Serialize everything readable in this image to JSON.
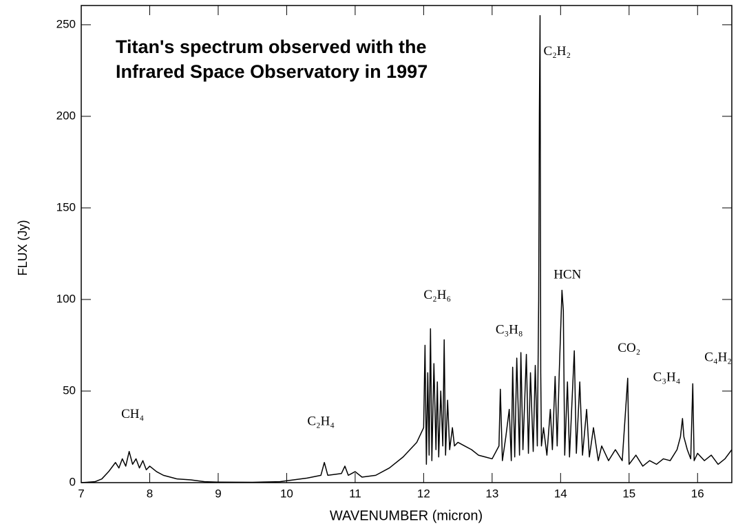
{
  "chart_data": {
    "type": "line",
    "title": [
      "Titan's spectrum observed with the",
      "Infrared Space Observatory in 1997"
    ],
    "x_label": "WAVENUMBER  (micron)",
    "y_label": "FLUX (Jy)",
    "color": "#000000",
    "x": [
      7.0,
      7.2,
      7.3,
      7.4,
      7.5,
      7.55,
      7.6,
      7.65,
      7.7,
      7.75,
      7.8,
      7.85,
      7.9,
      7.95,
      8.0,
      8.1,
      8.2,
      8.3,
      8.4,
      8.6,
      8.8,
      9.0,
      9.5,
      9.9,
      10.1,
      10.3,
      10.5,
      10.55,
      10.6,
      10.8,
      10.85,
      10.9,
      11.0,
      11.1,
      11.3,
      11.5,
      11.7,
      11.9,
      12.0,
      12.02,
      12.04,
      12.06,
      12.08,
      12.1,
      12.12,
      12.15,
      12.18,
      12.2,
      12.22,
      12.25,
      12.28,
      12.3,
      12.32,
      12.35,
      12.38,
      12.42,
      12.45,
      12.5,
      12.6,
      12.7,
      12.8,
      12.9,
      13.0,
      13.1,
      13.12,
      13.15,
      13.2,
      13.25,
      13.28,
      13.3,
      13.33,
      13.36,
      13.4,
      13.42,
      13.45,
      13.5,
      13.53,
      13.56,
      13.6,
      13.63,
      13.66,
      13.68,
      13.69,
      13.7,
      13.71,
      13.72,
      13.75,
      13.8,
      13.85,
      13.88,
      13.92,
      13.95,
      13.98,
      14.02,
      14.04,
      14.06,
      14.1,
      14.13,
      14.2,
      14.23,
      14.28,
      14.32,
      14.38,
      14.42,
      14.48,
      14.55,
      14.6,
      14.7,
      14.8,
      14.9,
      14.98,
      15.0,
      15.1,
      15.2,
      15.3,
      15.4,
      15.5,
      15.6,
      15.7,
      15.75,
      15.78,
      15.8,
      15.85,
      15.9,
      15.93,
      15.95,
      16.0,
      16.1,
      16.2,
      16.3,
      16.4,
      16.5
    ],
    "values": [
      0,
      0.5,
      2,
      6,
      11,
      8,
      13,
      9,
      17,
      10,
      13,
      8,
      12,
      7,
      9,
      6,
      4,
      3,
      2,
      1.5,
      0.5,
      0.3,
      0.2,
      0.5,
      1.5,
      2.5,
      4,
      11,
      4,
      5,
      9,
      4,
      6,
      3,
      4,
      8,
      14,
      22,
      30,
      75,
      10,
      60,
      15,
      84,
      12,
      65,
      18,
      55,
      14,
      50,
      20,
      78,
      15,
      45,
      18,
      30,
      20,
      22,
      20,
      18,
      15,
      14,
      13,
      20,
      51,
      12,
      25,
      40,
      12,
      63,
      14,
      68,
      15,
      71,
      18,
      70,
      16,
      60,
      17,
      64,
      20,
      100,
      202,
      255,
      60,
      20,
      30,
      15,
      40,
      18,
      58,
      20,
      60,
      105,
      94,
      15,
      55,
      14,
      72,
      16,
      55,
      15,
      40,
      14,
      30,
      12,
      20,
      12,
      18,
      12,
      57,
      10,
      15,
      9,
      12,
      10,
      13,
      12,
      18,
      25,
      35,
      25,
      18,
      13,
      54,
      12,
      16,
      12,
      15,
      10,
      13,
      18
    ],
    "xlim": [
      7,
      16.5
    ],
    "ylim": [
      0,
      260.5
    ],
    "xticks": [
      7,
      8,
      9,
      10,
      11,
      12,
      13,
      14,
      15,
      16
    ],
    "yticks": [
      0,
      50,
      100,
      150,
      200,
      250
    ],
    "annotations": [
      {
        "text": "CH₄",
        "x": 7.75,
        "y": 37
      },
      {
        "text": "C₂H₄",
        "x": 10.5,
        "y": 33
      },
      {
        "text": "C₂H₆",
        "x": 12.2,
        "y": 102
      },
      {
        "text": "C₃H₈",
        "x": 13.25,
        "y": 83
      },
      {
        "text": "C₂H₂",
        "x": 13.95,
        "y": 235
      },
      {
        "text": "HCN",
        "x": 14.1,
        "y": 113
      },
      {
        "text": "CO₂",
        "x": 15.0,
        "y": 73
      },
      {
        "text": "C₃H₄",
        "x": 15.55,
        "y": 57
      },
      {
        "text": "C₄H₂",
        "x": 16.3,
        "y": 68
      }
    ]
  }
}
